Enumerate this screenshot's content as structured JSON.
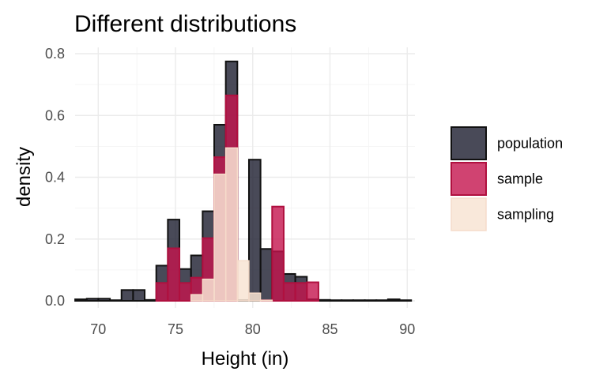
{
  "chart_data": {
    "type": "bar",
    "title": "Different distributions",
    "xlabel": "Height (in)",
    "ylabel": "density",
    "xlim": [
      68.5,
      90.5
    ],
    "ylim": [
      0,
      0.8
    ],
    "x_ticks": [
      70,
      75,
      80,
      85,
      90
    ],
    "y_ticks": [
      0.0,
      0.2,
      0.4,
      0.6,
      0.8
    ],
    "y_tick_labels": [
      "0.0",
      "0.2",
      "0.4",
      "0.6",
      "0.8"
    ],
    "x_minor": [
      72.5,
      77.5,
      82.5,
      87.5
    ],
    "y_minor": [
      0.1,
      0.3,
      0.5,
      0.7
    ],
    "grid": true,
    "legend_position": "right",
    "legend": [
      "population",
      "sample",
      "sampling"
    ],
    "bin_width": 0.75,
    "series": [
      {
        "name": "population",
        "color": "#1b1d2e",
        "x": [
          68.88,
          69.63,
          70.38,
          71.13,
          71.88,
          72.63,
          73.38,
          74.13,
          74.88,
          75.63,
          76.38,
          77.13,
          77.88,
          78.63,
          79.38,
          80.13,
          80.88,
          81.63,
          82.38,
          83.13,
          83.88,
          84.63,
          85.38,
          86.13,
          86.88,
          87.63,
          88.38,
          89.13,
          89.88
        ],
        "values": [
          0.005,
          0.007,
          0.007,
          0.0,
          0.035,
          0.035,
          0.003,
          0.114,
          0.263,
          0.103,
          0.147,
          0.29,
          0.57,
          0.775,
          0.0,
          0.457,
          0.168,
          0.16,
          0.087,
          0.078,
          0.005,
          0.003,
          0.002,
          0.002,
          0.0,
          0.0,
          0.0,
          0.005,
          0.0
        ]
      },
      {
        "name": "sample",
        "color": "#c4144e",
        "x": [
          74.13,
          74.88,
          75.63,
          76.38,
          77.13,
          77.88,
          78.63,
          80.88,
          81.63,
          82.38,
          83.13,
          83.88
        ],
        "values": [
          0.058,
          0.17,
          0.058,
          0.075,
          0.203,
          0.465,
          0.665,
          0.0,
          0.305,
          0.058,
          0.058,
          0.06
        ]
      },
      {
        "name": "sampling",
        "color": "#f8e4d4",
        "x": [
          76.38,
          77.13,
          77.88,
          78.63,
          79.38,
          80.13,
          80.88
        ],
        "values": [
          0.02,
          0.07,
          0.41,
          0.495,
          0.13,
          0.025,
          0.0
        ]
      }
    ]
  }
}
